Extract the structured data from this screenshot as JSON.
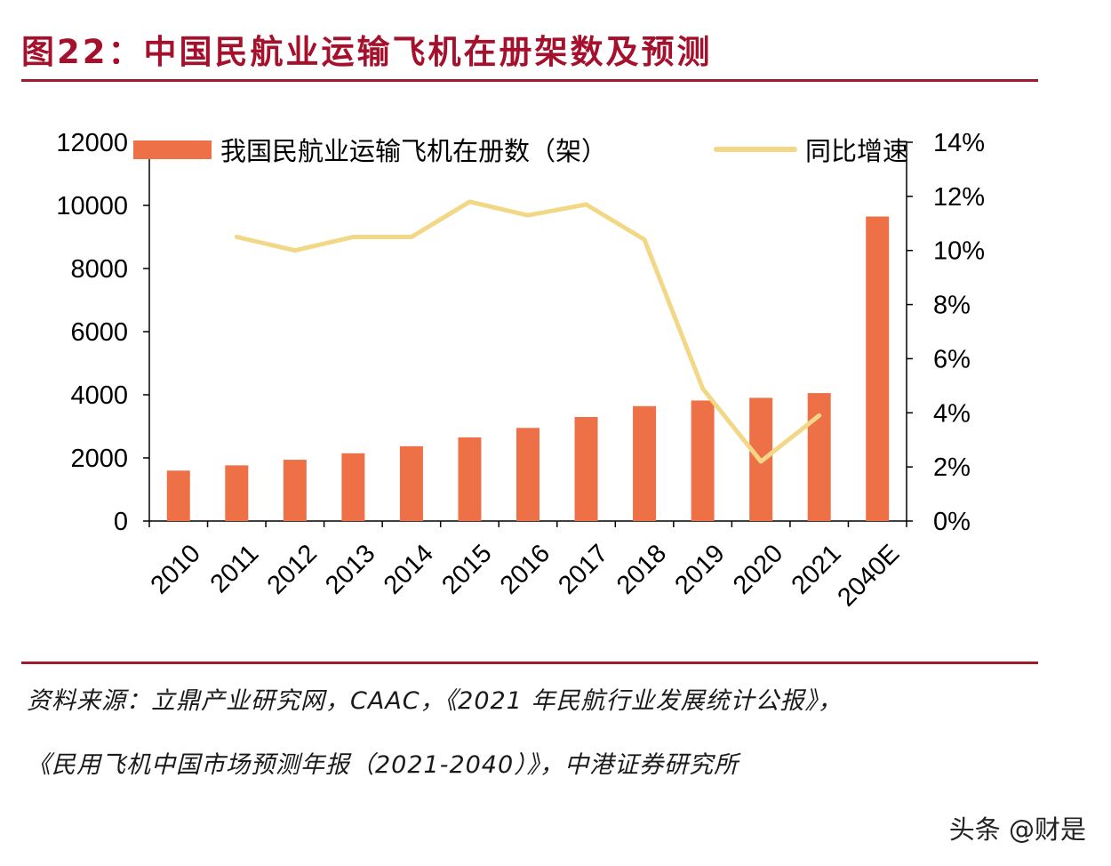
{
  "figure": {
    "title": "图22：中国民航业运输飞机在册架数及预测"
  },
  "chart_data": {
    "type": "bar+line",
    "categories": [
      "2010",
      "2011",
      "2012",
      "2013",
      "2014",
      "2015",
      "2016",
      "2017",
      "2018",
      "2019",
      "2020",
      "2021",
      "2040E"
    ],
    "series": [
      {
        "name": "我国民航业运输飞机在册数（架）",
        "kind": "bar",
        "axis": "left",
        "color": "#ee7046",
        "values": [
          1597,
          1764,
          1941,
          2145,
          2370,
          2650,
          2950,
          3296,
          3639,
          3818,
          3903,
          4054,
          9648
        ]
      },
      {
        "name": "同比增速",
        "kind": "line",
        "axis": "right",
        "color": "#f2d886",
        "values": [
          null,
          10.5,
          10.0,
          10.5,
          10.5,
          11.8,
          11.3,
          11.7,
          10.4,
          4.9,
          2.2,
          3.9,
          null
        ]
      }
    ],
    "left_axis": {
      "min": 0,
      "max": 12000,
      "ticks": [
        "0",
        "2000",
        "4000",
        "6000",
        "8000",
        "10000",
        "12000"
      ]
    },
    "right_axis": {
      "min": 0,
      "max": 14,
      "ticks": [
        "0%",
        "2%",
        "4%",
        "6%",
        "8%",
        "10%",
        "12%",
        "14%"
      ]
    },
    "legend_position": "top"
  },
  "source": {
    "line1": "资料来源：立鼎产业研究网，CAAC，《2021 年民航行业发展统计公报》，",
    "line2": "《民用飞机中国市场预测年报（2021-2040）》，中港证券研究所"
  },
  "watermark": "头条 @财是"
}
